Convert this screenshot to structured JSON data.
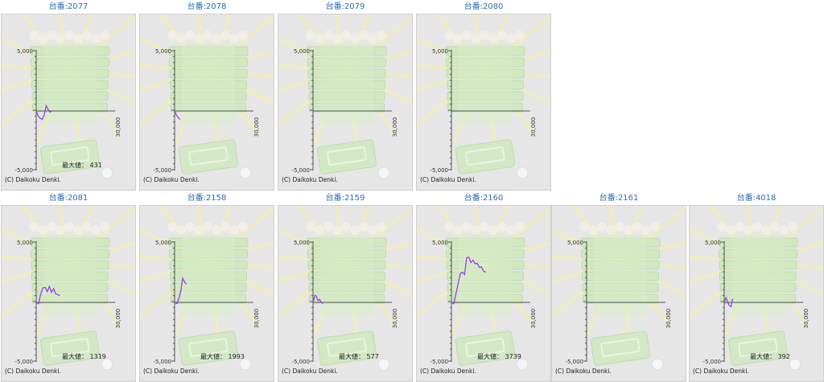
{
  "copyright": "(C) Daikoku Denki.",
  "max_prefix": "最大値：",
  "chart_data": [
    {
      "type": "line",
      "title": "台番:2077",
      "max_label": "431",
      "ylim": [
        -5000,
        5000
      ],
      "y_ticks": [
        "5,000",
        "-5,000"
      ],
      "x_tick": "30,000",
      "xlim": [
        0,
        30000
      ],
      "series": [
        {
          "color": "#9b3df0",
          "x": [
            0,
            700,
            1400,
            2300,
            3100,
            3800,
            4500,
            5200,
            5900
          ],
          "y": [
            0,
            -400,
            -600,
            -700,
            -300,
            431,
            150,
            -100,
            0
          ]
        }
      ]
    },
    {
      "type": "line",
      "title": "台番:2078",
      "max_label": "",
      "ylim": [
        -5000,
        5000
      ],
      "y_ticks": [
        "5,000",
        "-5,000"
      ],
      "x_tick": "30,000",
      "xlim": [
        0,
        30000
      ],
      "series": [
        {
          "color": "#9b3df0",
          "x": [
            0,
            700,
            1400,
            2100
          ],
          "y": [
            0,
            -350,
            -550,
            -700
          ]
        }
      ]
    },
    {
      "type": "line",
      "title": "台番:2079",
      "max_label": "",
      "ylim": [
        -5000,
        5000
      ],
      "y_ticks": [
        "5,000",
        "-5,000"
      ],
      "x_tick": "30,000",
      "xlim": [
        0,
        30000
      ],
      "series": []
    },
    {
      "type": "line",
      "title": "台番:2080",
      "max_label": "",
      "ylim": [
        -5000,
        5000
      ],
      "y_ticks": [
        "5,000",
        "-5,000"
      ],
      "x_tick": "30,000",
      "xlim": [
        0,
        30000
      ],
      "series": []
    },
    {
      "type": "line",
      "title": "台番:2081",
      "max_label": "1319",
      "ylim": [
        -5000,
        5000
      ],
      "y_ticks": [
        "5,000",
        "-5,000"
      ],
      "x_tick": "30,000",
      "xlim": [
        0,
        30000
      ],
      "series": [
        {
          "color": "#9b3df0",
          "x": [
            0,
            900,
            1700,
            2500,
            3400,
            4200,
            5000,
            5800,
            6600,
            7400,
            8200,
            9000
          ],
          "y": [
            0,
            -100,
            700,
            1200,
            1250,
            900,
            1319,
            850,
            1150,
            700,
            650,
            550
          ]
        }
      ]
    },
    {
      "type": "line",
      "title": "台番:2158",
      "max_label": "1993",
      "ylim": [
        -5000,
        5000
      ],
      "y_ticks": [
        "5,000",
        "-5,000"
      ],
      "x_tick": "30,000",
      "xlim": [
        0,
        30000
      ],
      "series": [
        {
          "color": "#9b3df0",
          "x": [
            0,
            900,
            1700,
            2400,
            3100,
            3800,
            4400
          ],
          "y": [
            0,
            -100,
            400,
            1000,
            1993,
            1700,
            1500
          ]
        }
      ]
    },
    {
      "type": "line",
      "title": "台番:2159",
      "max_label": "577",
      "ylim": [
        -5000,
        5000
      ],
      "y_ticks": [
        "5,000",
        "-5,000"
      ],
      "x_tick": "30,000",
      "xlim": [
        0,
        30000
      ],
      "series": [
        {
          "color": "#9b3df0",
          "x": [
            0,
            700,
            1300,
            1900,
            2500,
            3100,
            3800
          ],
          "y": [
            0,
            577,
            500,
            150,
            250,
            0,
            -100
          ]
        }
      ]
    },
    {
      "type": "line",
      "title": "台番:2160",
      "max_label": "3739",
      "ylim": [
        -5000,
        5000
      ],
      "y_ticks": [
        "5,000",
        "-5,000"
      ],
      "x_tick": "30,000",
      "xlim": [
        0,
        30000
      ],
      "series": [
        {
          "color": "#9b3df0",
          "x": [
            0,
            900,
            1800,
            2600,
            3400,
            4200,
            5000,
            5800,
            6600,
            7400,
            8200,
            9000,
            9800,
            10600,
            11400,
            12200,
            13000
          ],
          "y": [
            0,
            -100,
            800,
            1600,
            2400,
            2500,
            2300,
            3700,
            3739,
            3300,
            3500,
            3200,
            3250,
            2900,
            2950,
            2600,
            2500
          ]
        }
      ]
    },
    {
      "type": "line",
      "title": "台番:2161",
      "max_label": "",
      "ylim": [
        -5000,
        5000
      ],
      "y_ticks": [
        "5,000",
        "-5,000"
      ],
      "x_tick": "30,000",
      "xlim": [
        0,
        30000
      ],
      "series": []
    },
    {
      "type": "line",
      "title": "台番:4018",
      "max_label": "392",
      "ylim": [
        -5000,
        5000
      ],
      "y_ticks": [
        "5,000",
        "-5,000"
      ],
      "x_tick": "30,000",
      "xlim": [
        0,
        30000
      ],
      "series": [
        {
          "color": "#9b3df0",
          "x": [
            0,
            700,
            1300,
            1900,
            2600,
            3200
          ],
          "y": [
            0,
            392,
            50,
            -250,
            -350,
            300
          ]
        }
      ]
    }
  ]
}
